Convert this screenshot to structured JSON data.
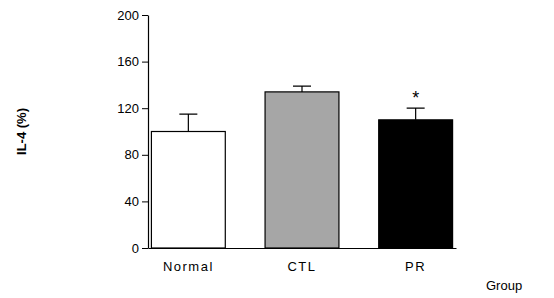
{
  "chart_data": {
    "type": "bar",
    "y_label": "IL-4 (%)",
    "x_label": "Group",
    "categories": [
      "Normal",
      "CTL",
      "PR"
    ],
    "values": [
      100,
      134,
      110
    ],
    "errors": [
      15,
      5,
      10
    ],
    "colors": [
      "#ffffff",
      "#a6a6a6",
      "#000000"
    ],
    "ylim": [
      0,
      200
    ],
    "yticks": [
      0,
      40,
      80,
      120,
      160,
      200
    ],
    "annotations": [
      {
        "text": "*",
        "x": "PR"
      }
    ]
  }
}
